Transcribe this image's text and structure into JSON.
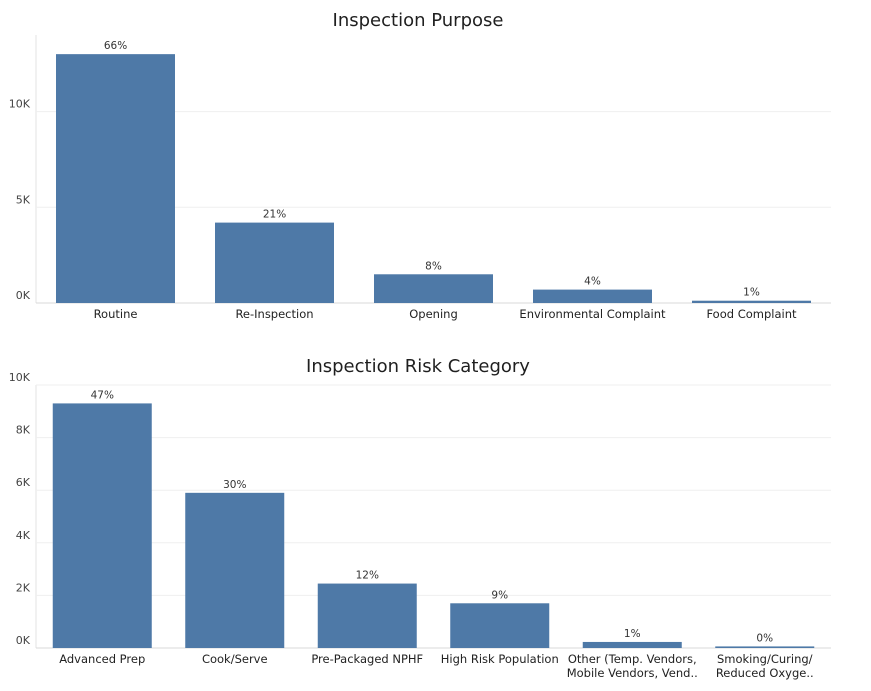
{
  "chart_data": [
    {
      "type": "bar",
      "title": "Inspection Purpose",
      "categories": [
        [
          "Routine"
        ],
        [
          "Re-Inspection"
        ],
        [
          "Opening"
        ],
        [
          "Environmental Complaint"
        ],
        [
          "Food Complaint"
        ]
      ],
      "values": [
        13000,
        4200,
        1500,
        700,
        120
      ],
      "data_labels": [
        "66%",
        "21%",
        "8%",
        "4%",
        "1%"
      ],
      "yticks": [
        {
          "value": 0,
          "label": "0K"
        },
        {
          "value": 5000,
          "label": "5K"
        },
        {
          "value": 10000,
          "label": "10K"
        }
      ],
      "ylim": [
        0,
        14000
      ],
      "grid": true,
      "color": "#4e79a7"
    },
    {
      "type": "bar",
      "title": "Inspection Risk Category",
      "categories": [
        [
          "Advanced Prep"
        ],
        [
          "Cook/Serve"
        ],
        [
          "Pre-Packaged NPHF"
        ],
        [
          "High Risk Population"
        ],
        [
          "Other (Temp. Vendors,",
          "Mobile Vendors, Vend.."
        ],
        [
          "Smoking/Curing/",
          "Reduced Oxyge.."
        ]
      ],
      "values": [
        9300,
        5900,
        2450,
        1700,
        230,
        60
      ],
      "data_labels": [
        "47%",
        "30%",
        "12%",
        "9%",
        "1%",
        "0%"
      ],
      "yticks": [
        {
          "value": 0,
          "label": "0K"
        },
        {
          "value": 2000,
          "label": "2K"
        },
        {
          "value": 4000,
          "label": "4K"
        },
        {
          "value": 6000,
          "label": "6K"
        },
        {
          "value": 8000,
          "label": "8K"
        },
        {
          "value": 10000,
          "label": "10K"
        }
      ],
      "ylim": [
        0,
        10000
      ],
      "grid": true,
      "color": "#4e79a7"
    }
  ]
}
